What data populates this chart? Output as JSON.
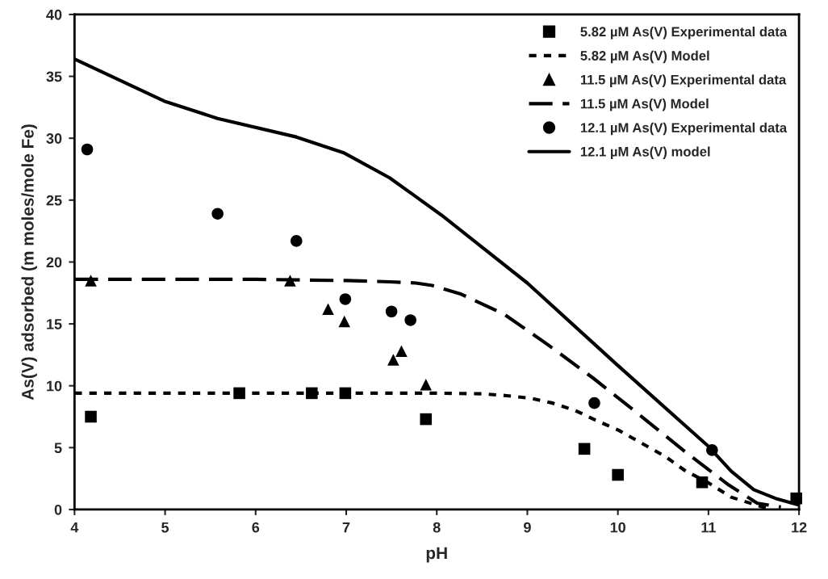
{
  "chart_data": {
    "type": "scatter",
    "xlabel": "pH",
    "ylabel": "As(V) adsorbed (m moles/mole Fe)",
    "xlim": [
      4,
      12
    ],
    "xticks": [
      4,
      5,
      6,
      7,
      8,
      9,
      10,
      11,
      12
    ],
    "ylim": [
      0,
      40
    ],
    "yticks": [
      0,
      5,
      10,
      15,
      20,
      25,
      30,
      35,
      40
    ],
    "grid": false,
    "legend": "top right",
    "series": [
      {
        "name": "5.82 µM As(V) Experimental data",
        "marker": "square",
        "color": "#000000",
        "x": [
          4.18,
          5.82,
          6.62,
          6.99,
          7.88,
          9.63,
          10.0,
          10.93,
          11.97
        ],
        "values": [
          7.5,
          9.4,
          9.4,
          9.4,
          7.3,
          4.9,
          2.8,
          2.2,
          0.9
        ]
      },
      {
        "name": "5.82 µM As(V) Model",
        "type": "line",
        "line_style": "dotted",
        "marker": "none",
        "color": "#000000",
        "x": [
          4,
          5,
          6,
          7,
          8,
          8.5,
          8.77,
          9.03,
          9.28,
          9.53,
          9.76,
          10.01,
          10.52,
          10.75,
          10.99,
          11.25,
          11.51,
          11.69
        ],
        "values": [
          9.4,
          9.4,
          9.4,
          9.4,
          9.4,
          9.35,
          9.2,
          9.0,
          8.6,
          8.0,
          7.2,
          6.4,
          4.3,
          3.1,
          2.2,
          1.0,
          0.4,
          0.0
        ]
      },
      {
        "name": "11.5 µM As(V) Experimental data",
        "marker": "triangle",
        "color": "#000000",
        "x": [
          4.18,
          6.38,
          6.8,
          6.98,
          7.52,
          7.61,
          7.88
        ],
        "values": [
          18.5,
          18.5,
          16.2,
          15.2,
          12.1,
          12.8,
          10.1
        ]
      },
      {
        "name": "11.5 µM As(V) Model",
        "type": "line",
        "line_style": "dashed",
        "marker": "none",
        "color": "#000000",
        "x": [
          4,
          5,
          6,
          7,
          7.48,
          7.77,
          7.95,
          8.27,
          8.74,
          9.23,
          9.73,
          10.23,
          10.72,
          11.22,
          11.54,
          11.8
        ],
        "values": [
          18.6,
          18.6,
          18.6,
          18.5,
          18.4,
          18.3,
          18.1,
          17.4,
          15.8,
          13.3,
          10.6,
          7.7,
          4.8,
          2.0,
          0.5,
          0.2
        ]
      },
      {
        "name": "12.1 µM As(V) Experimental data",
        "marker": "circle",
        "color": "#000000",
        "x": [
          4.14,
          5.58,
          6.45,
          6.99,
          7.5,
          7.71,
          9.74,
          11.04
        ],
        "values": [
          29.1,
          23.9,
          21.7,
          17.0,
          16.0,
          15.3,
          8.6,
          4.8
        ]
      },
      {
        "name": "12.1 µM As(V) model",
        "type": "line",
        "line_style": "solid",
        "marker": "none",
        "color": "#000000",
        "x": [
          4,
          4.99,
          5.58,
          6.45,
          6.98,
          7.48,
          8.05,
          8.5,
          9.0,
          9.99,
          11.0,
          11.25,
          11.5,
          11.74,
          11.98
        ],
        "values": [
          36.4,
          33.0,
          31.6,
          30.1,
          28.8,
          26.8,
          23.8,
          21.2,
          18.3,
          11.7,
          5.1,
          3.1,
          1.6,
          0.9,
          0.4
        ]
      }
    ]
  }
}
